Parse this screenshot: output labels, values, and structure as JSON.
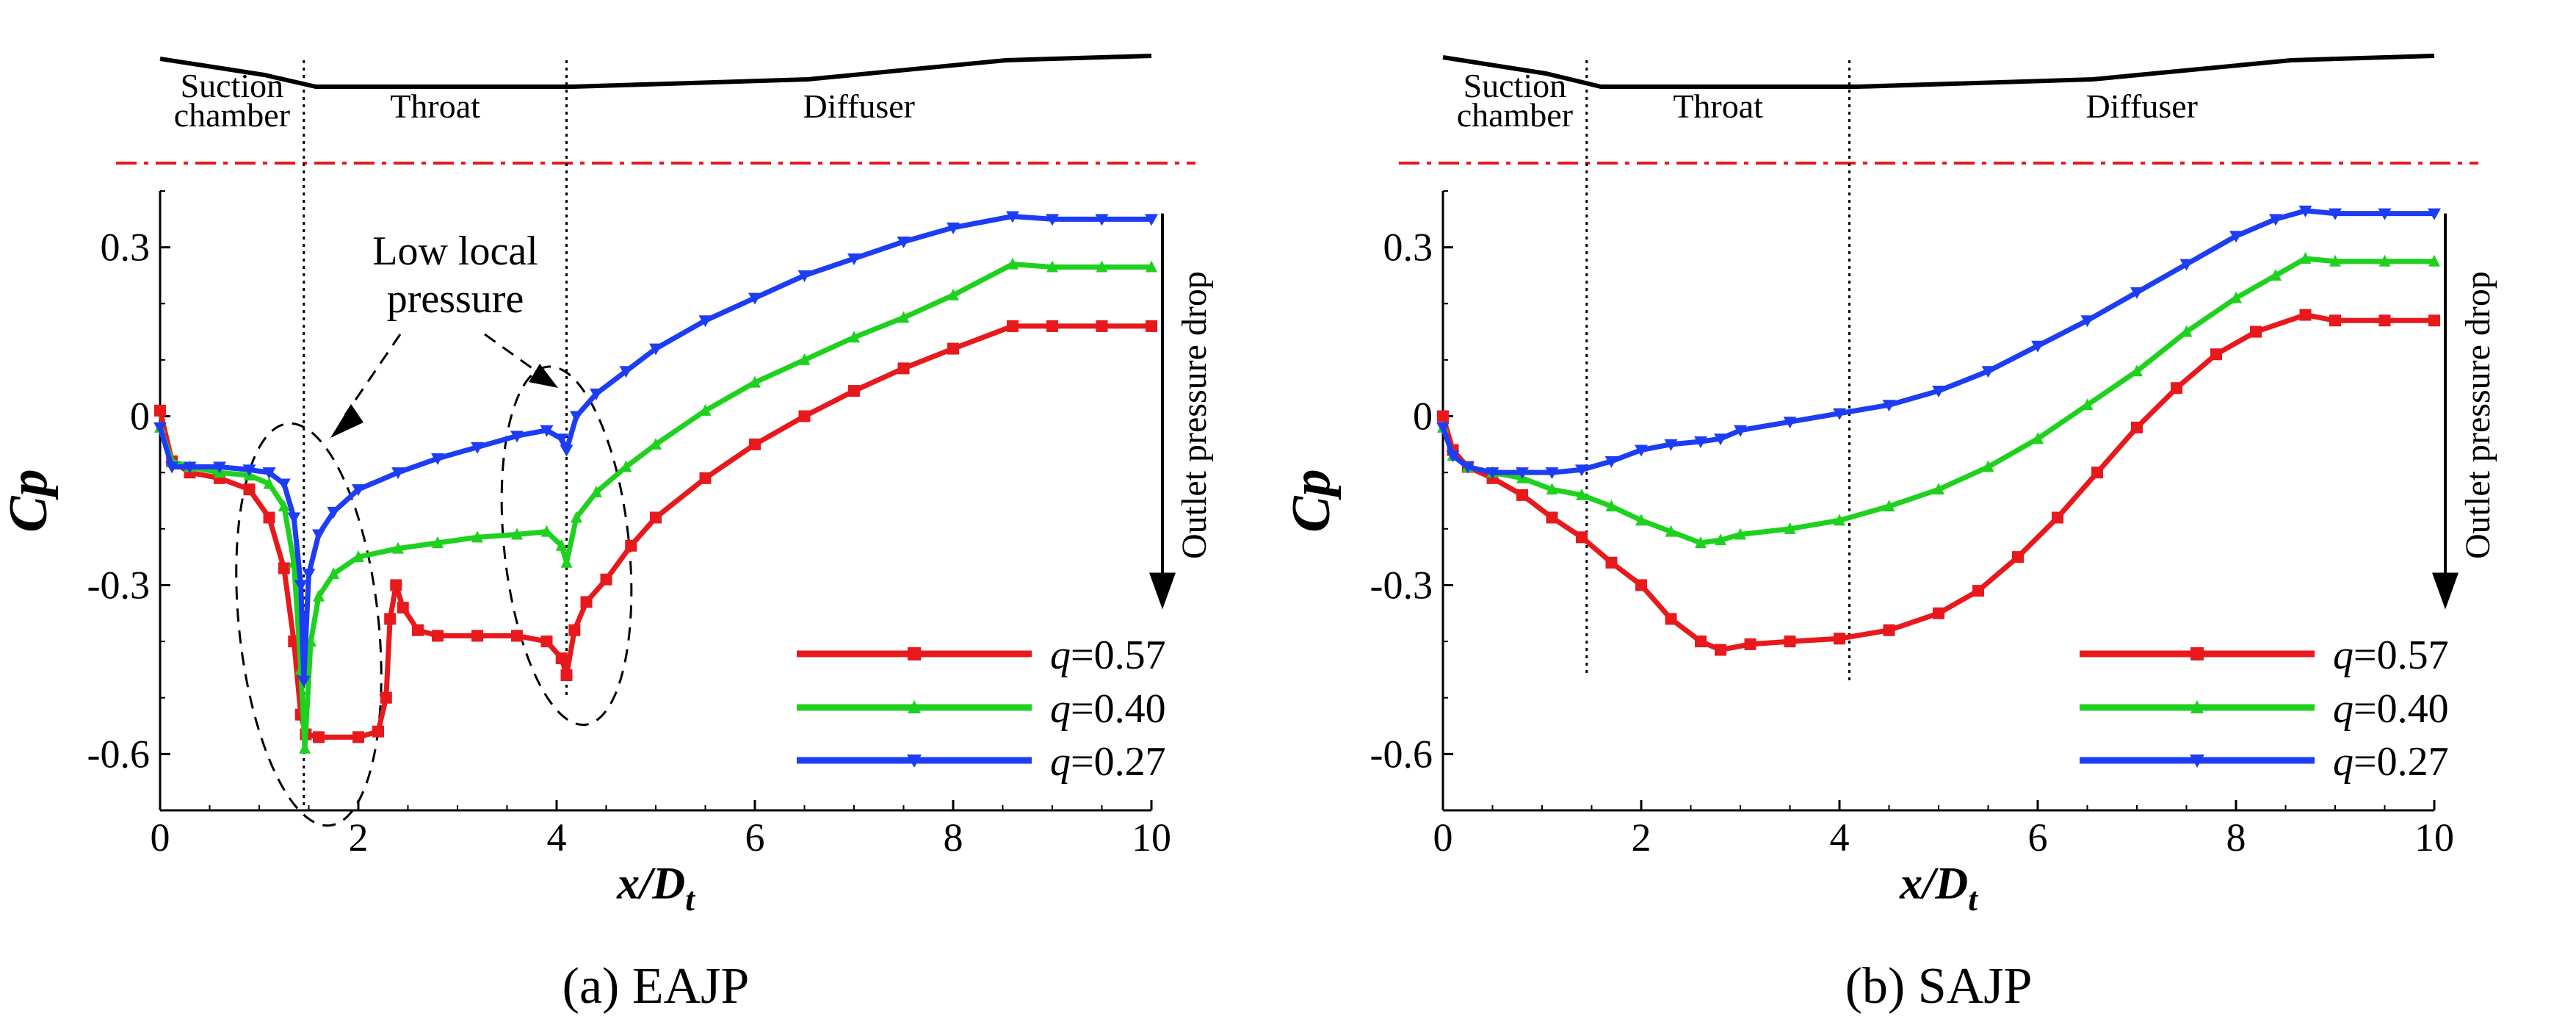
{
  "chart_data": [
    {
      "type": "line",
      "caption": "(a) EAJP",
      "xlabel": "x/D",
      "xlabel_sub": "t",
      "ylabel": "Cp",
      "xlim": [
        0,
        10
      ],
      "ylim": [
        -0.7,
        0.4
      ],
      "xticks": [
        0,
        2,
        4,
        6,
        8,
        10
      ],
      "yticks": [
        -0.6,
        -0.3,
        0,
        0.3
      ],
      "xtick_labels": [
        "0",
        "2",
        "4",
        "6",
        "8",
        "10"
      ],
      "ytick_labels": [
        "-0.6",
        "-0.3",
        "0",
        "0.3"
      ],
      "region_boundaries": [
        1.45,
        4.1
      ],
      "regions": [
        {
          "lines": [
            "Suction",
            "chamber"
          ]
        },
        {
          "lines": [
            "Throat"
          ]
        },
        {
          "lines": [
            "Diffuser"
          ]
        }
      ],
      "annotation": [
        "Low local",
        "pressure"
      ],
      "side_label": "Outlet pressure drop",
      "series": [
        {
          "name": "q=0.57",
          "q_label": "q",
          "q_value": "=0.57",
          "color": "#e8191c",
          "marker": "square",
          "points": [
            [
              0,
              0.01
            ],
            [
              0.12,
              -0.08
            ],
            [
              0.3,
              -0.1
            ],
            [
              0.6,
              -0.11
            ],
            [
              0.9,
              -0.13
            ],
            [
              1.1,
              -0.18
            ],
            [
              1.25,
              -0.27
            ],
            [
              1.35,
              -0.4
            ],
            [
              1.42,
              -0.53
            ],
            [
              1.47,
              -0.565
            ],
            [
              1.6,
              -0.57
            ],
            [
              2.0,
              -0.57
            ],
            [
              2.2,
              -0.56
            ],
            [
              2.28,
              -0.5
            ],
            [
              2.32,
              -0.36
            ],
            [
              2.38,
              -0.3
            ],
            [
              2.45,
              -0.34
            ],
            [
              2.6,
              -0.38
            ],
            [
              2.8,
              -0.39
            ],
            [
              3.2,
              -0.39
            ],
            [
              3.6,
              -0.39
            ],
            [
              3.9,
              -0.4
            ],
            [
              4.05,
              -0.43
            ],
            [
              4.1,
              -0.46
            ],
            [
              4.18,
              -0.38
            ],
            [
              4.3,
              -0.33
            ],
            [
              4.5,
              -0.29
            ],
            [
              4.75,
              -0.23
            ],
            [
              5.0,
              -0.18
            ],
            [
              5.5,
              -0.11
            ],
            [
              6.0,
              -0.05
            ],
            [
              6.5,
              0.0
            ],
            [
              7.0,
              0.045
            ],
            [
              7.5,
              0.085
            ],
            [
              8.0,
              0.12
            ],
            [
              8.6,
              0.16
            ],
            [
              9.0,
              0.16
            ],
            [
              9.5,
              0.16
            ],
            [
              10,
              0.16
            ]
          ]
        },
        {
          "name": "q=0.40",
          "q_label": "q",
          "q_value": "=0.40",
          "color": "#1fd11f",
          "marker": "triangle-up",
          "points": [
            [
              0,
              -0.02
            ],
            [
              0.12,
              -0.08
            ],
            [
              0.3,
              -0.09
            ],
            [
              0.6,
              -0.1
            ],
            [
              0.9,
              -0.105
            ],
            [
              1.1,
              -0.12
            ],
            [
              1.25,
              -0.16
            ],
            [
              1.35,
              -0.26
            ],
            [
              1.42,
              -0.45
            ],
            [
              1.46,
              -0.59
            ],
            [
              1.52,
              -0.4
            ],
            [
              1.6,
              -0.32
            ],
            [
              1.75,
              -0.28
            ],
            [
              2.0,
              -0.25
            ],
            [
              2.4,
              -0.235
            ],
            [
              2.8,
              -0.225
            ],
            [
              3.2,
              -0.215
            ],
            [
              3.6,
              -0.21
            ],
            [
              3.9,
              -0.205
            ],
            [
              4.05,
              -0.23
            ],
            [
              4.1,
              -0.26
            ],
            [
              4.2,
              -0.18
            ],
            [
              4.4,
              -0.135
            ],
            [
              4.7,
              -0.09
            ],
            [
              5.0,
              -0.05
            ],
            [
              5.5,
              0.01
            ],
            [
              6.0,
              0.06
            ],
            [
              6.5,
              0.1
            ],
            [
              7.0,
              0.14
            ],
            [
              7.5,
              0.175
            ],
            [
              8.0,
              0.215
            ],
            [
              8.6,
              0.27
            ],
            [
              9.0,
              0.265
            ],
            [
              9.5,
              0.265
            ],
            [
              10,
              0.265
            ]
          ]
        },
        {
          "name": "q=0.27",
          "q_label": "q",
          "q_value": "=0.27",
          "color": "#1d3df5",
          "marker": "triangle-down",
          "points": [
            [
              0,
              -0.02
            ],
            [
              0.12,
              -0.09
            ],
            [
              0.3,
              -0.09
            ],
            [
              0.6,
              -0.09
            ],
            [
              0.9,
              -0.095
            ],
            [
              1.1,
              -0.1
            ],
            [
              1.25,
              -0.12
            ],
            [
              1.35,
              -0.18
            ],
            [
              1.42,
              -0.3
            ],
            [
              1.45,
              -0.47
            ],
            [
              1.5,
              -0.28
            ],
            [
              1.6,
              -0.21
            ],
            [
              1.75,
              -0.17
            ],
            [
              2.0,
              -0.13
            ],
            [
              2.4,
              -0.1
            ],
            [
              2.8,
              -0.075
            ],
            [
              3.2,
              -0.055
            ],
            [
              3.6,
              -0.035
            ],
            [
              3.9,
              -0.025
            ],
            [
              4.05,
              -0.04
            ],
            [
              4.1,
              -0.06
            ],
            [
              4.2,
              0.0
            ],
            [
              4.4,
              0.04
            ],
            [
              4.7,
              0.08
            ],
            [
              5.0,
              0.12
            ],
            [
              5.5,
              0.17
            ],
            [
              6.0,
              0.21
            ],
            [
              6.5,
              0.25
            ],
            [
              7.0,
              0.28
            ],
            [
              7.5,
              0.31
            ],
            [
              8.0,
              0.335
            ],
            [
              8.6,
              0.355
            ],
            [
              9.0,
              0.35
            ],
            [
              9.5,
              0.35
            ],
            [
              10,
              0.35
            ]
          ]
        }
      ]
    },
    {
      "type": "line",
      "caption": "(b) SAJP",
      "xlabel": "x/D",
      "xlabel_sub": "t",
      "ylabel": "Cp",
      "xlim": [
        0,
        10
      ],
      "ylim": [
        -0.7,
        0.4
      ],
      "xticks": [
        0,
        2,
        4,
        6,
        8,
        10
      ],
      "yticks": [
        -0.6,
        -0.3,
        0,
        0.3
      ],
      "xtick_labels": [
        "0",
        "2",
        "4",
        "6",
        "8",
        "10"
      ],
      "ytick_labels": [
        "-0.6",
        "-0.3",
        "0",
        "0.3"
      ],
      "region_boundaries": [
        1.45,
        4.1
      ],
      "regions": [
        {
          "lines": [
            "Suction",
            "chamber"
          ]
        },
        {
          "lines": [
            "Throat"
          ]
        },
        {
          "lines": [
            "Diffuser"
          ]
        }
      ],
      "side_label": "Outlet pressure drop",
      "series": [
        {
          "name": "q=0.57",
          "q_label": "q",
          "q_value": "=0.57",
          "color": "#e8191c",
          "marker": "square",
          "points": [
            [
              0,
              0.0
            ],
            [
              0.1,
              -0.06
            ],
            [
              0.25,
              -0.09
            ],
            [
              0.5,
              -0.11
            ],
            [
              0.8,
              -0.14
            ],
            [
              1.1,
              -0.18
            ],
            [
              1.4,
              -0.215
            ],
            [
              1.7,
              -0.26
            ],
            [
              2.0,
              -0.3
            ],
            [
              2.3,
              -0.36
            ],
            [
              2.6,
              -0.4
            ],
            [
              2.8,
              -0.415
            ],
            [
              3.1,
              -0.405
            ],
            [
              3.5,
              -0.4
            ],
            [
              4.0,
              -0.395
            ],
            [
              4.5,
              -0.38
            ],
            [
              5.0,
              -0.35
            ],
            [
              5.4,
              -0.31
            ],
            [
              5.8,
              -0.25
            ],
            [
              6.2,
              -0.18
            ],
            [
              6.6,
              -0.1
            ],
            [
              7.0,
              -0.02
            ],
            [
              7.4,
              0.05
            ],
            [
              7.8,
              0.11
            ],
            [
              8.2,
              0.15
            ],
            [
              8.7,
              0.18
            ],
            [
              9.0,
              0.17
            ],
            [
              9.5,
              0.17
            ],
            [
              10,
              0.17
            ]
          ]
        },
        {
          "name": "q=0.40",
          "q_label": "q",
          "q_value": "=0.40",
          "color": "#1fd11f",
          "marker": "triangle-up",
          "points": [
            [
              0,
              -0.02
            ],
            [
              0.1,
              -0.07
            ],
            [
              0.25,
              -0.09
            ],
            [
              0.5,
              -0.1
            ],
            [
              0.8,
              -0.11
            ],
            [
              1.1,
              -0.13
            ],
            [
              1.4,
              -0.14
            ],
            [
              1.7,
              -0.16
            ],
            [
              2.0,
              -0.185
            ],
            [
              2.3,
              -0.205
            ],
            [
              2.6,
              -0.225
            ],
            [
              2.8,
              -0.22
            ],
            [
              3.0,
              -0.21
            ],
            [
              3.5,
              -0.2
            ],
            [
              4.0,
              -0.185
            ],
            [
              4.5,
              -0.16
            ],
            [
              5.0,
              -0.13
            ],
            [
              5.5,
              -0.09
            ],
            [
              6.0,
              -0.04
            ],
            [
              6.5,
              0.02
            ],
            [
              7.0,
              0.08
            ],
            [
              7.5,
              0.15
            ],
            [
              8.0,
              0.21
            ],
            [
              8.4,
              0.25
            ],
            [
              8.7,
              0.28
            ],
            [
              9.0,
              0.275
            ],
            [
              9.5,
              0.275
            ],
            [
              10,
              0.275
            ]
          ]
        },
        {
          "name": "q=0.27",
          "q_label": "q",
          "q_value": "=0.27",
          "color": "#1d3df5",
          "marker": "triangle-down",
          "points": [
            [
              0,
              -0.02
            ],
            [
              0.1,
              -0.07
            ],
            [
              0.25,
              -0.09
            ],
            [
              0.5,
              -0.1
            ],
            [
              0.8,
              -0.1
            ],
            [
              1.1,
              -0.1
            ],
            [
              1.4,
              -0.095
            ],
            [
              1.7,
              -0.08
            ],
            [
              2.0,
              -0.06
            ],
            [
              2.3,
              -0.05
            ],
            [
              2.6,
              -0.045
            ],
            [
              2.8,
              -0.04
            ],
            [
              3.0,
              -0.025
            ],
            [
              3.5,
              -0.01
            ],
            [
              4.0,
              0.005
            ],
            [
              4.5,
              0.02
            ],
            [
              5.0,
              0.045
            ],
            [
              5.5,
              0.08
            ],
            [
              6.0,
              0.125
            ],
            [
              6.5,
              0.17
            ],
            [
              7.0,
              0.22
            ],
            [
              7.5,
              0.27
            ],
            [
              8.0,
              0.32
            ],
            [
              8.4,
              0.35
            ],
            [
              8.7,
              0.365
            ],
            [
              9.0,
              0.36
            ],
            [
              9.5,
              0.36
            ],
            [
              10,
              0.36
            ]
          ]
        }
      ]
    }
  ]
}
